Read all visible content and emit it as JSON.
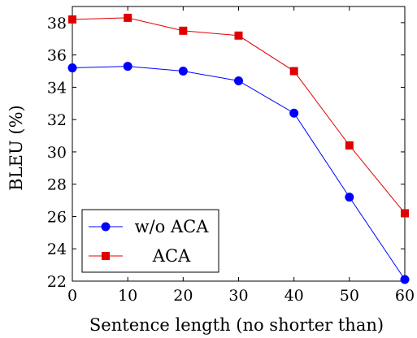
{
  "chart_data": {
    "type": "line",
    "xlabel": "Sentence length (no shorter than)",
    "ylabel": "BLEU (%)",
    "xlim": [
      0,
      60
    ],
    "ylim": [
      22,
      39
    ],
    "xticks": [
      0,
      10,
      20,
      30,
      40,
      50,
      60
    ],
    "yticks": [
      22,
      24,
      26,
      28,
      30,
      32,
      34,
      36,
      38
    ],
    "grid": false,
    "legend_position": "bottom-left",
    "x": [
      0,
      10,
      20,
      30,
      40,
      50,
      60
    ],
    "series": [
      {
        "name": "w/o ACA",
        "color": "#0000ff",
        "marker": "circle",
        "values": [
          35.2,
          35.3,
          35.0,
          34.4,
          32.4,
          27.2,
          22.1
        ]
      },
      {
        "name": "ACA",
        "color": "#e00000",
        "marker": "square",
        "values": [
          38.2,
          38.3,
          37.5,
          37.2,
          35.0,
          30.4,
          26.2
        ]
      }
    ]
  }
}
